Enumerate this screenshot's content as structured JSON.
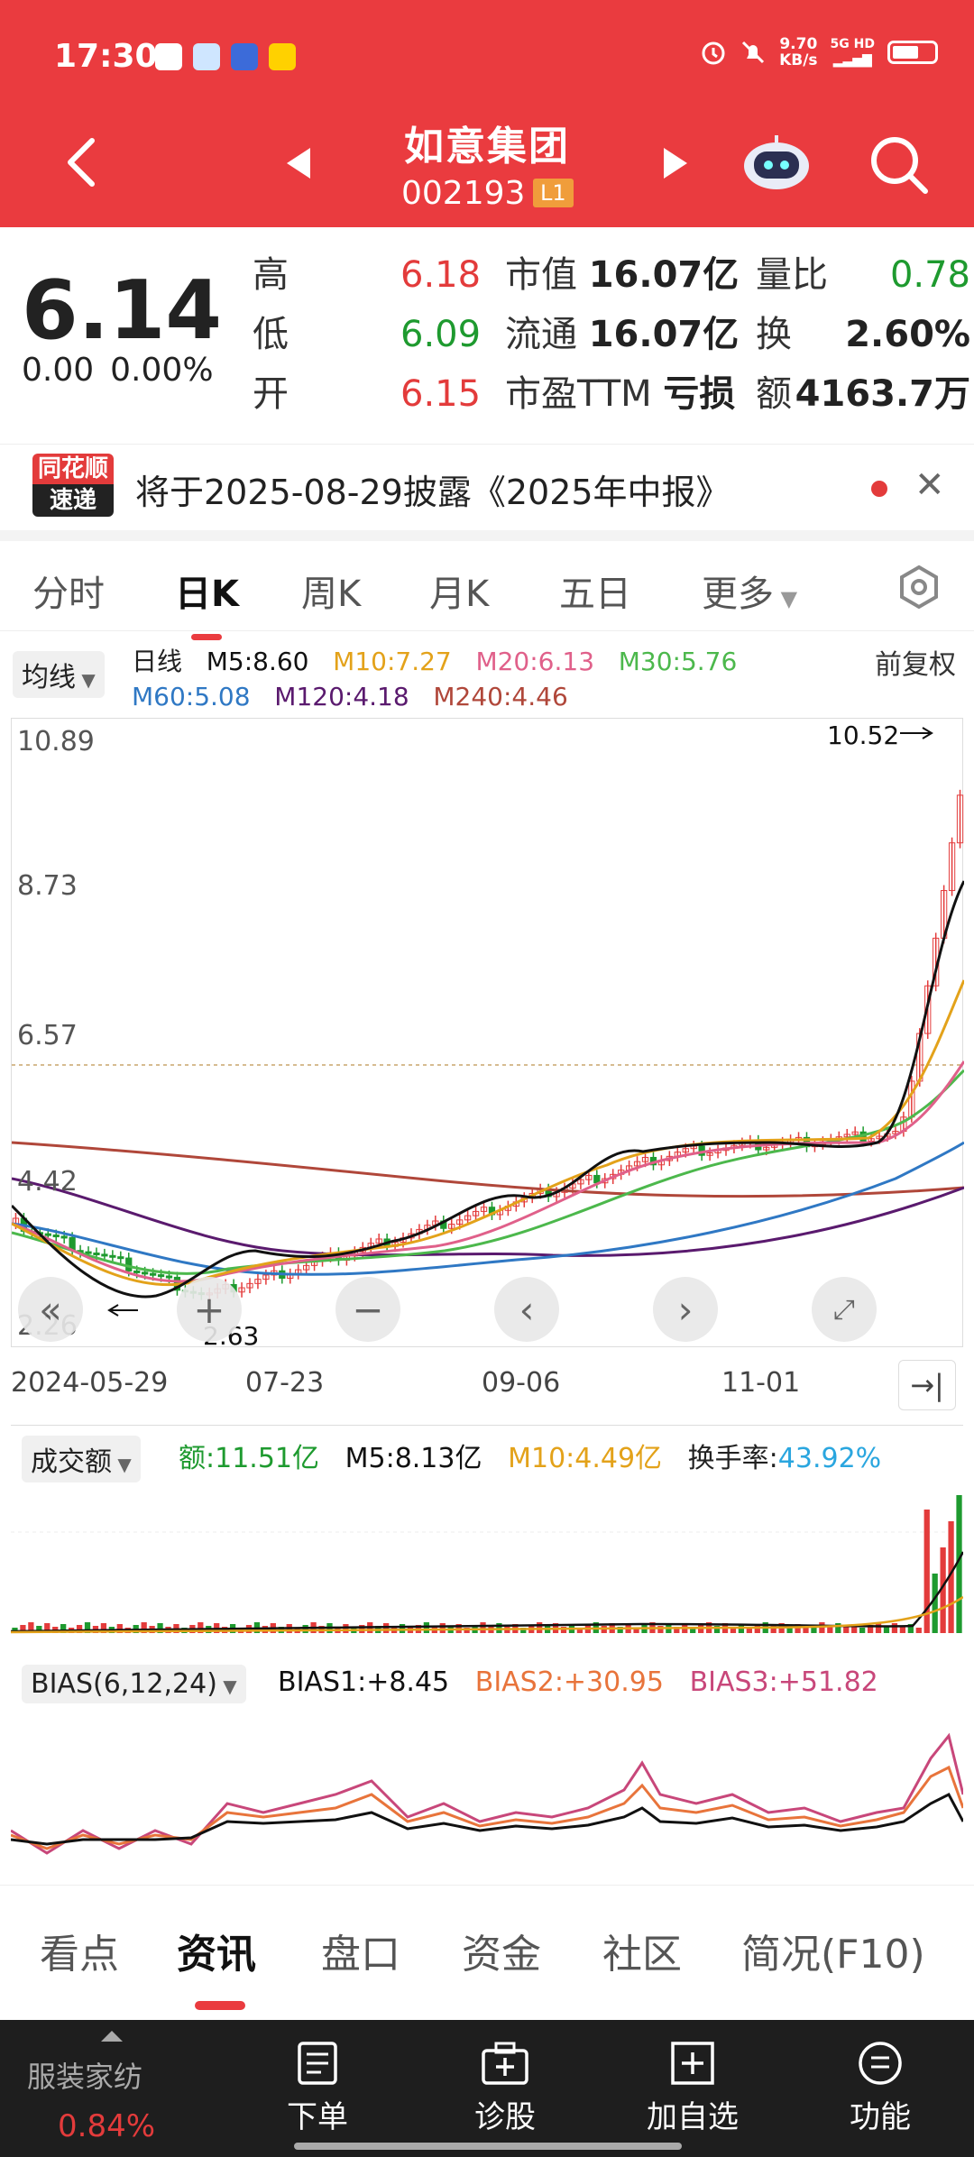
{
  "status_bar": {
    "time": "17:30",
    "net_speed_value": "9.70",
    "net_speed_unit": "KB/s",
    "net_type": "5G HD"
  },
  "nav": {
    "title": "如意集团",
    "code": "002193",
    "level": "L1"
  },
  "quote": {
    "price": "6.14",
    "change": "0.00",
    "change_pct": "0.00%",
    "high_label": "高",
    "high": "6.18",
    "low_label": "低",
    "low": "6.09",
    "open_label": "开",
    "open": "6.15",
    "mktcap_label": "市值",
    "mktcap": "16.07亿",
    "float_label": "流通",
    "float": "16.07亿",
    "pe_label": "市盈TTM",
    "pe": "亏损",
    "vol_ratio_label": "量比",
    "vol_ratio": "0.78",
    "turnover_label": "换",
    "turnover": "2.60%",
    "amount_label": "额",
    "amount": "4163.7万"
  },
  "notice": {
    "logo_line1": "同花顺",
    "logo_line2": "速递",
    "text": "将于2025-08-29披露《2025年中报》"
  },
  "k_tabs": [
    "分时",
    "日K",
    "周K",
    "月K",
    "五日",
    "更多"
  ],
  "ma": {
    "chip": "均线",
    "period": "日线",
    "m5": "M5:8.60",
    "m10": "M10:7.27",
    "m20": "M20:6.13",
    "m30": "M30:5.76",
    "m60": "M60:5.08",
    "m120": "M120:4.18",
    "m240": "M240:4.46",
    "adjust": "前复权"
  },
  "price_axis": [
    "10.89",
    "8.73",
    "6.57",
    "4.42",
    "2.26"
  ],
  "markers": {
    "high": "10.52",
    "low": "2.63"
  },
  "dates": [
    "2024-05-29",
    "07-23",
    "09-06",
    "11-01"
  ],
  "volume": {
    "chip": "成交额",
    "amount": "额:11.51亿",
    "m5": "M5:8.13亿",
    "m10": "M10:4.49亿",
    "turnover_label": "换手率:",
    "turnover_value": "43.92%"
  },
  "bias": {
    "chip": "BIAS(6,12,24)",
    "b1": "BIAS1:+8.45",
    "b2": "BIAS2:+30.95",
    "b3": "BIAS3:+51.82"
  },
  "bottom_tabs": [
    "看点",
    "资讯",
    "盘口",
    "资金",
    "社区",
    "简况(F10)"
  ],
  "toolbar": {
    "sector": "服装家纺",
    "sector_pct": "0.84%",
    "order": "下单",
    "diagnose": "诊股",
    "add": "加自选",
    "func": "功能"
  },
  "colors": {
    "brand_red": "#ea3b3f",
    "up": "#e33b3b",
    "down": "#1e9a2f",
    "m5": "#111111",
    "m10": "#e3a21a",
    "m20": "#e0608a",
    "m30": "#4cb84c",
    "m60": "#2f78c4",
    "m120": "#5a1a6e",
    "m240": "#b0473a"
  }
}
